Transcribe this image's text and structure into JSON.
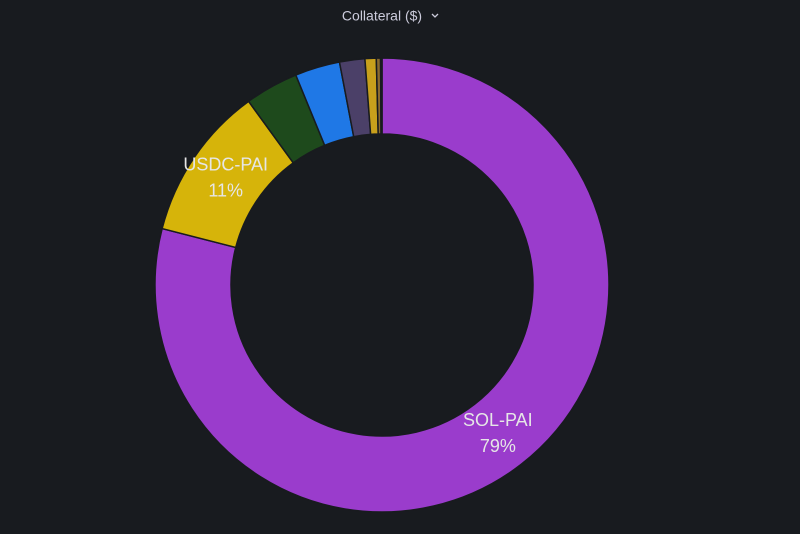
{
  "chart_data": {
    "type": "donut",
    "title": "Collateral ($)",
    "categories": [
      "SOL-PAI",
      "USDC-PAI",
      null,
      null,
      null,
      null,
      null,
      null
    ],
    "values": [
      79,
      11,
      3.8,
      3.2,
      1.8,
      0.8,
      0.3,
      0.1
    ],
    "value_labels": [
      "79%",
      "11%",
      null,
      null,
      null,
      null,
      null,
      null
    ],
    "colors": [
      "#9a3ccc",
      "#d6b40a",
      "#1e4a1c",
      "#1f78e6",
      "#4b4068",
      "#c8a01c",
      "#8a6a30",
      "#b8782a"
    ]
  }
}
